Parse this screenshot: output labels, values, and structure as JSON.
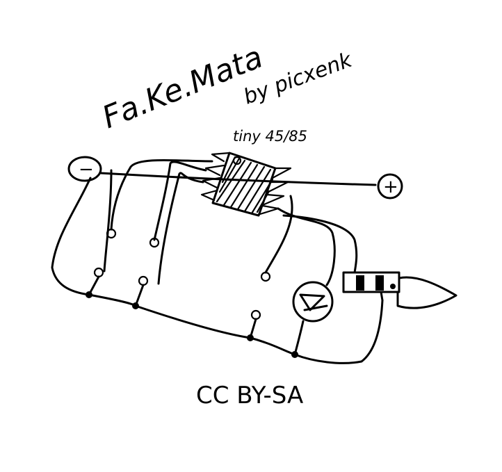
{
  "title": "Fa.Ke.Mata",
  "author": "by picxenk",
  "chip_label": "tiny 45/85",
  "minus_label": "−",
  "plus_label": "+",
  "license": "CC BY-SA"
}
